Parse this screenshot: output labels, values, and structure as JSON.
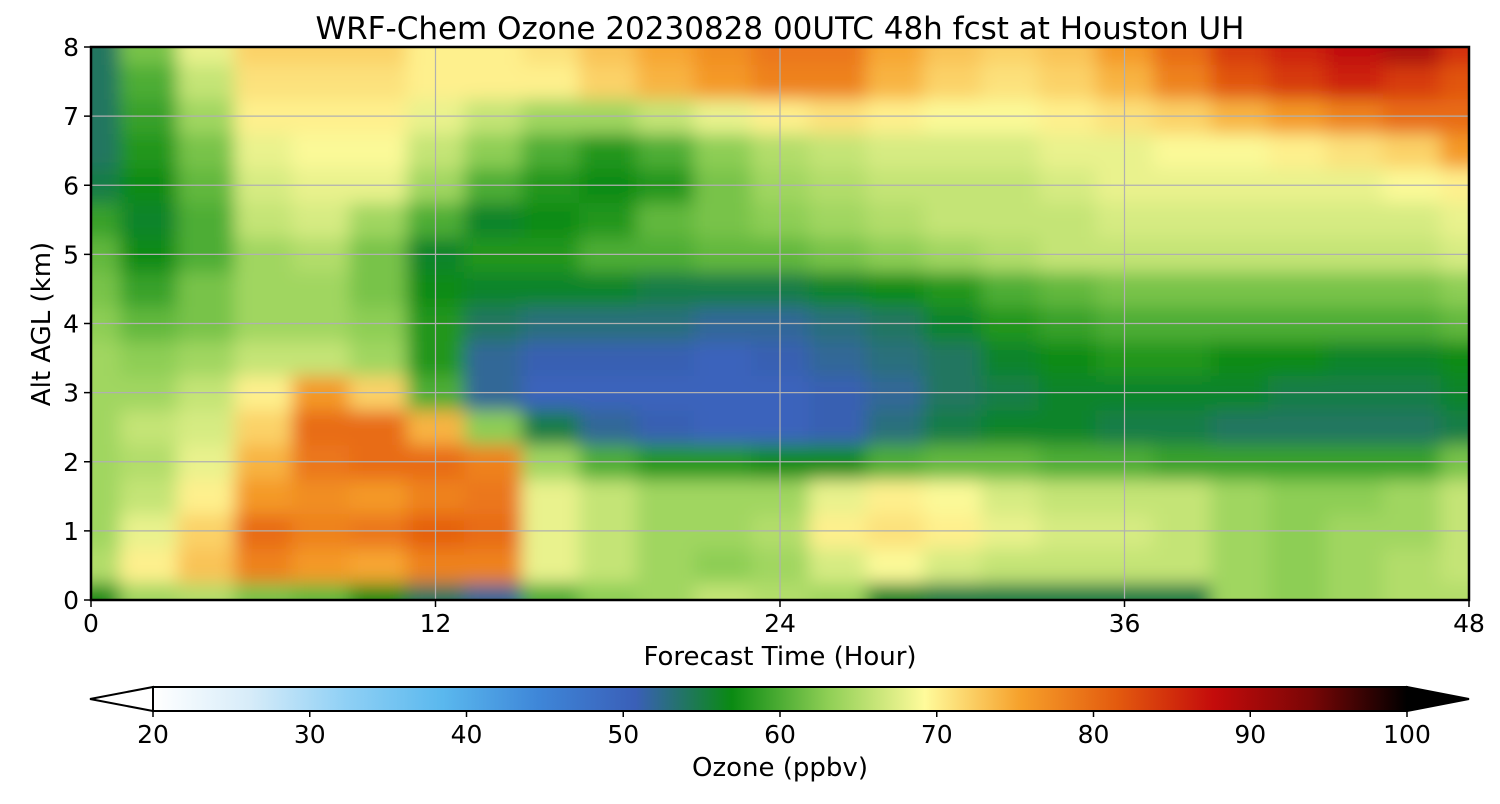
{
  "chart_data": {
    "type": "heatmap",
    "title": "WRF-Chem Ozone  20230828 00UTC 48h fcst at Houston UH",
    "xlabel": "Forecast Time (Hour)",
    "ylabel": "Alt AGL (km)",
    "xlim": [
      0,
      48
    ],
    "ylim": [
      0,
      8
    ],
    "xticks": [
      "0",
      "12",
      "24",
      "36",
      "48"
    ],
    "yticks": [
      "0",
      "1",
      "2",
      "3",
      "4",
      "5",
      "6",
      "7",
      "8"
    ],
    "grid": true,
    "x_hours": [
      0,
      2,
      4,
      6,
      8,
      10,
      12,
      14,
      16,
      18,
      20,
      22,
      24,
      26,
      28,
      30,
      32,
      34,
      36,
      38,
      40,
      42,
      44,
      46,
      48
    ],
    "y_km": [
      0,
      0.5,
      1,
      1.5,
      2,
      2.5,
      3,
      3.5,
      4,
      4.5,
      5,
      5.5,
      6,
      6.5,
      7,
      7.5,
      8
    ],
    "ozone_ppbv": [
      [
        57,
        64,
        65,
        62,
        61,
        57,
        54,
        52,
        60,
        63,
        64,
        66,
        65,
        64,
        56,
        55,
        55,
        55,
        55,
        55,
        64,
        63,
        64,
        65,
        65
      ],
      [
        65,
        70,
        73,
        78,
        76,
        75,
        78,
        78,
        68,
        66,
        64,
        63,
        64,
        67,
        69,
        67,
        66,
        66,
        66,
        66,
        64,
        63,
        64,
        65,
        66
      ],
      [
        64,
        68,
        72,
        80,
        78,
        79,
        81,
        80,
        68,
        66,
        64,
        64,
        65,
        70,
        71,
        70,
        68,
        67,
        67,
        66,
        64,
        63,
        64,
        64,
        66
      ],
      [
        64,
        66,
        70,
        76,
        77,
        76,
        78,
        79,
        68,
        66,
        64,
        64,
        64,
        68,
        70,
        69,
        67,
        66,
        66,
        66,
        64,
        63,
        63,
        64,
        66
      ],
      [
        64,
        65,
        68,
        74,
        79,
        80,
        80,
        78,
        64,
        60,
        58,
        58,
        57,
        57,
        60,
        61,
        61,
        60,
        60,
        59,
        59,
        59,
        59,
        59,
        62
      ],
      [
        64,
        66,
        67,
        72,
        80,
        80,
        74,
        63,
        55,
        52,
        51,
        50,
        50,
        51,
        53,
        55,
        56,
        56,
        55,
        55,
        54,
        54,
        54,
        54,
        55
      ],
      [
        64,
        64,
        66,
        70,
        76,
        72,
        60,
        52,
        50,
        50,
        50,
        50,
        50,
        51,
        52,
        54,
        55,
        56,
        56,
        56,
        56,
        55,
        55,
        55,
        56
      ],
      [
        64,
        63,
        64,
        66,
        66,
        64,
        58,
        52,
        51,
        51,
        51,
        50,
        51,
        52,
        53,
        54,
        56,
        57,
        58,
        58,
        57,
        57,
        56,
        56,
        57
      ],
      [
        63,
        61,
        62,
        64,
        64,
        63,
        58,
        54,
        53,
        53,
        53,
        52,
        52,
        53,
        54,
        56,
        58,
        59,
        60,
        60,
        60,
        60,
        60,
        60,
        61
      ],
      [
        62,
        59,
        62,
        64,
        64,
        62,
        57,
        56,
        56,
        56,
        55,
        55,
        55,
        56,
        57,
        58,
        60,
        61,
        62,
        62,
        62,
        62,
        62,
        62,
        63
      ],
      [
        61,
        57,
        60,
        64,
        65,
        62,
        56,
        58,
        58,
        60,
        60,
        61,
        61,
        62,
        63,
        64,
        65,
        66,
        66,
        66,
        66,
        66,
        66,
        66,
        67
      ],
      [
        59,
        56,
        60,
        66,
        67,
        64,
        60,
        56,
        57,
        58,
        61,
        62,
        63,
        64,
        65,
        66,
        66,
        66,
        67,
        67,
        67,
        67,
        67,
        67,
        68
      ],
      [
        55,
        57,
        61,
        67,
        68,
        68,
        64,
        60,
        58,
        57,
        58,
        62,
        64,
        65,
        66,
        66,
        66,
        67,
        68,
        68,
        68,
        68,
        68,
        69,
        70
      ],
      [
        54,
        58,
        62,
        68,
        69,
        69,
        66,
        63,
        60,
        58,
        60,
        63,
        65,
        66,
        67,
        67,
        67,
        68,
        68,
        69,
        69,
        70,
        71,
        72,
        76
      ],
      [
        54,
        59,
        64,
        70,
        70,
        70,
        68,
        66,
        64,
        64,
        66,
        68,
        70,
        71,
        70,
        69,
        69,
        70,
        71,
        72,
        74,
        76,
        78,
        80,
        80
      ],
      [
        54,
        60,
        66,
        71,
        71,
        71,
        70,
        70,
        70,
        72,
        74,
        76,
        78,
        78,
        74,
        72,
        71,
        72,
        74,
        78,
        82,
        84,
        86,
        84,
        82
      ],
      [
        54,
        62,
        68,
        72,
        72,
        72,
        70,
        70,
        71,
        73,
        75,
        77,
        79,
        79,
        75,
        73,
        72,
        73,
        76,
        80,
        84,
        86,
        88,
        90,
        85
      ]
    ],
    "colorbar": {
      "label": "Ozone  (ppbv)",
      "ticks": [
        "20",
        "30",
        "40",
        "50",
        "60",
        "70",
        "80",
        "90",
        "100"
      ],
      "min": 20,
      "max": 100,
      "extend": "both",
      "colors": [
        "#ffffff",
        "#d7ecf9",
        "#8fd0f5",
        "#5ab8ee",
        "#3e86d8",
        "#3a5fb8",
        "#0a8a12",
        "#8fcf55",
        "#fffb9b",
        "#f6a02a",
        "#e35a0e",
        "#c40b0b",
        "#7a0606",
        "#000000"
      ]
    }
  }
}
